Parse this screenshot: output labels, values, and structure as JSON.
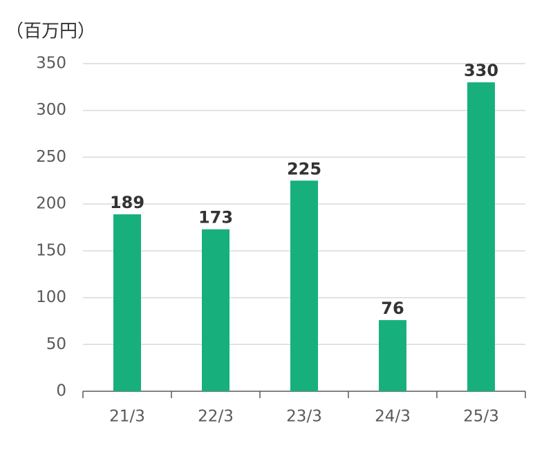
{
  "chart_data": {
    "type": "bar",
    "y_label": "（百万円）",
    "categories": [
      "21/3",
      "22/3",
      "23/3",
      "24/3",
      "25/3"
    ],
    "values": [
      189,
      173,
      225,
      76,
      330
    ],
    "color": "#17b07d",
    "ylim": [
      0,
      350
    ],
    "yticks": [
      0,
      50,
      100,
      150,
      200,
      250,
      300,
      350
    ],
    "grid": true
  }
}
